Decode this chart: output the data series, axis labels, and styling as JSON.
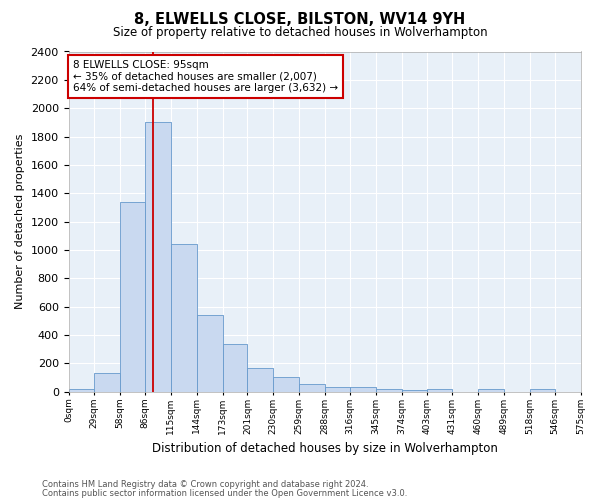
{
  "title": "8, ELWELLS CLOSE, BILSTON, WV14 9YH",
  "subtitle": "Size of property relative to detached houses in Wolverhampton",
  "xlabel": "Distribution of detached houses by size in Wolverhampton",
  "ylabel": "Number of detached properties",
  "bar_values": [
    20,
    130,
    1340,
    1900,
    1040,
    540,
    340,
    165,
    105,
    55,
    35,
    30,
    20,
    15,
    20,
    0,
    20,
    0,
    20
  ],
  "bin_labels": [
    "0sqm",
    "29sqm",
    "58sqm",
    "86sqm",
    "115sqm",
    "144sqm",
    "173sqm",
    "201sqm",
    "230sqm",
    "259sqm",
    "288sqm",
    "316sqm",
    "345sqm",
    "374sqm",
    "403sqm",
    "431sqm",
    "460sqm",
    "489sqm",
    "518sqm",
    "546sqm",
    "575sqm"
  ],
  "bar_color": "#c9d9f0",
  "bar_edge_color": "#6699cc",
  "bg_color": "#e8f0f8",
  "grid_color": "#ffffff",
  "vline_x": 95,
  "vline_color": "#cc0000",
  "annotation_text": "8 ELWELLS CLOSE: 95sqm\n← 35% of detached houses are smaller (2,007)\n64% of semi-detached houses are larger (3,632) →",
  "annotation_box_color": "#ffffff",
  "annotation_box_edge": "#cc0000",
  "ylim": [
    0,
    2400
  ],
  "fig_bg": "#ffffff",
  "footer1": "Contains HM Land Registry data © Crown copyright and database right 2024.",
  "footer2": "Contains public sector information licensed under the Open Government Licence v3.0."
}
